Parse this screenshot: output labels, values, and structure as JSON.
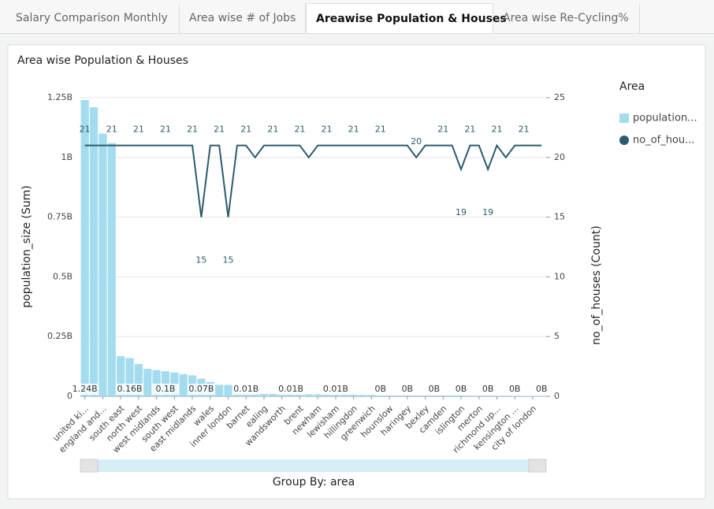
{
  "tabs": [
    "Salary Comparison Monthly",
    "Area wise # of Jobs",
    "Areawise Population & Houses",
    "Area wise Re-Cycling%"
  ],
  "active_tab": 2,
  "chart_data": {
    "type": "bar-line",
    "title": "Area wise Population & Houses",
    "x_label": "Group By: area",
    "y_label": "population_size (Sum)",
    "y2_label": "no_of_houses (Count)",
    "legend_title": "Area",
    "legend": "right",
    "categories": [
      "united ki...",
      null,
      "england and...",
      null,
      "south east",
      null,
      "north west",
      null,
      "west midlands",
      null,
      "south west",
      null,
      "east midlands",
      null,
      "wales",
      null,
      "inner london",
      null,
      "barnet",
      null,
      "ealing",
      null,
      "wandsworth",
      null,
      "brent",
      null,
      "newham",
      null,
      "lewisham",
      null,
      "hillingdon",
      null,
      "greenwich",
      null,
      "hounslow",
      null,
      "haringey",
      null,
      "bexley",
      null,
      "camden",
      null,
      "islington",
      null,
      "merton",
      null,
      "richmond up...",
      null,
      "kensington ...",
      null,
      "city of london",
      null
    ],
    "series": [
      {
        "name": "population...",
        "color": "#a3dcef",
        "kind": "bar",
        "values": [
          1.24,
          1.21,
          1.1,
          1.06,
          0.168,
          0.16,
          0.135,
          0.115,
          0.11,
          0.105,
          0.1,
          0.093,
          0.088,
          0.074,
          0.06,
          0.048,
          0.048,
          0.015,
          0.012,
          0.011,
          0.01,
          0.01,
          0.009,
          0.009,
          0.008,
          0.008,
          0.008,
          0.008,
          0.007,
          0.007,
          0.007,
          0.006,
          0.006,
          0.004,
          0.004,
          0.004,
          0.004,
          0.004,
          0.004,
          0.004,
          0.004,
          0.004,
          0.004,
          0.003,
          0.003,
          0.003,
          0.003,
          0.003,
          0.002,
          0.002,
          0.002,
          0.001
        ],
        "value_labels": [
          "1.24B",
          null,
          null,
          null,
          null,
          "0.16B",
          null,
          null,
          null,
          "0.1B",
          null,
          null,
          null,
          "0.07B",
          null,
          null,
          null,
          null,
          "0.01B",
          null,
          null,
          null,
          null,
          "0.01B",
          null,
          null,
          null,
          null,
          "0.01B",
          null,
          null,
          null,
          null,
          "0B",
          null,
          null,
          "0B",
          null,
          null,
          "0B",
          null,
          null,
          "0B",
          null,
          null,
          "0B",
          null,
          null,
          "0B",
          null,
          null,
          "0B"
        ]
      },
      {
        "name": "no_of_hou...",
        "color": "#2b5b6f",
        "kind": "line",
        "axis": "y2",
        "values": [
          21,
          21,
          21,
          21,
          21,
          21,
          21,
          21,
          21,
          21,
          21,
          21,
          21,
          15,
          21,
          21,
          15,
          21,
          21,
          20,
          21,
          21,
          21,
          21,
          21,
          20,
          21,
          21,
          21,
          21,
          21,
          21,
          21,
          21,
          21,
          21,
          21,
          20,
          21,
          21,
          21,
          21,
          19,
          21,
          21,
          19,
          21,
          20,
          21,
          21,
          21,
          21
        ],
        "value_labels": [
          "21",
          null,
          null,
          "21",
          null,
          null,
          "21",
          null,
          null,
          "21",
          null,
          null,
          "21",
          "15",
          null,
          "21",
          "15",
          null,
          "21",
          null,
          null,
          "21",
          null,
          null,
          "21",
          null,
          null,
          "21",
          null,
          null,
          "21",
          null,
          null,
          "21",
          null,
          null,
          null,
          "20",
          null,
          null,
          "21",
          null,
          "19",
          "21",
          null,
          "19",
          "21",
          null,
          null,
          "21",
          null,
          null
        ]
      }
    ],
    "ylim": [
      0,
      1.25
    ],
    "yticks": [
      0,
      {
        "value": 0.25,
        "label": "0.25B"
      },
      {
        "value": 0.5,
        "label": "0.5B"
      },
      {
        "value": 0.75,
        "label": "0.75B"
      },
      {
        "value": 1,
        "label": "1B"
      },
      {
        "value": 1.25,
        "label": "1.25B"
      }
    ],
    "y2lim": [
      0,
      25
    ],
    "y2ticks": [
      0,
      5,
      10,
      15,
      20,
      25
    ],
    "grid": true
  }
}
